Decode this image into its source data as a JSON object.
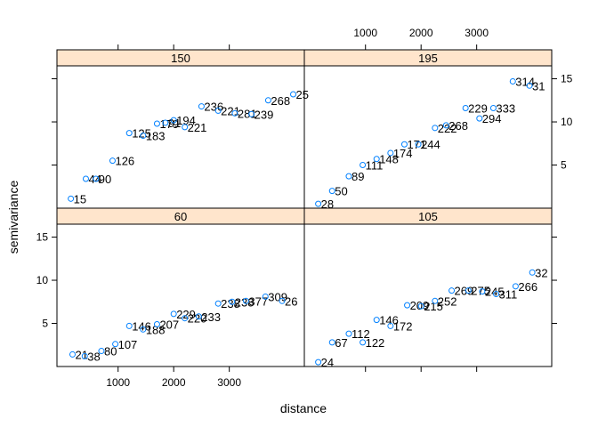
{
  "chart_data": {
    "type": "scatter",
    "layout": "trellis 2x2, panels labelled by strip",
    "xlabel": "distance",
    "ylabel": "semivariance",
    "xlim": [
      -100,
      4350
    ],
    "ylim": [
      0,
      16.5
    ],
    "x_ticks": [
      1000,
      2000,
      3000
    ],
    "y_ticks": [
      5,
      10,
      15
    ],
    "panels": [
      {
        "strip": "150",
        "points": [
          {
            "x": 150,
            "y": 1.1,
            "label": "15"
          },
          {
            "x": 420,
            "y": 3.4,
            "label": "44"
          },
          {
            "x": 600,
            "y": 3.4,
            "label": "90"
          },
          {
            "x": 900,
            "y": 5.5,
            "label": "126"
          },
          {
            "x": 1200,
            "y": 8.7,
            "label": "125"
          },
          {
            "x": 1450,
            "y": 8.4,
            "label": "183"
          },
          {
            "x": 1700,
            "y": 9.8,
            "label": "179"
          },
          {
            "x": 1850,
            "y": 9.9,
            "label": "91"
          },
          {
            "x": 2000,
            "y": 10.2,
            "label": "194"
          },
          {
            "x": 2200,
            "y": 9.4,
            "label": "221"
          },
          {
            "x": 2500,
            "y": 11.8,
            "label": "236"
          },
          {
            "x": 2800,
            "y": 11.3,
            "label": "221"
          },
          {
            "x": 3100,
            "y": 11.0,
            "label": "281"
          },
          {
            "x": 3400,
            "y": 10.9,
            "label": "239"
          },
          {
            "x": 3700,
            "y": 12.5,
            "label": "268"
          },
          {
            "x": 4150,
            "y": 13.2,
            "label": "25"
          }
        ]
      },
      {
        "strip": "195",
        "points": [
          {
            "x": 150,
            "y": 0.5,
            "label": "28"
          },
          {
            "x": 400,
            "y": 2.0,
            "label": "50"
          },
          {
            "x": 700,
            "y": 3.7,
            "label": "89"
          },
          {
            "x": 950,
            "y": 5.0,
            "label": "111"
          },
          {
            "x": 1200,
            "y": 5.7,
            "label": "148"
          },
          {
            "x": 1450,
            "y": 6.4,
            "label": "174"
          },
          {
            "x": 1700,
            "y": 7.4,
            "label": "171"
          },
          {
            "x": 1950,
            "y": 7.4,
            "label": "244"
          },
          {
            "x": 2250,
            "y": 9.3,
            "label": "222"
          },
          {
            "x": 2450,
            "y": 9.6,
            "label": "268"
          },
          {
            "x": 2800,
            "y": 11.6,
            "label": "229"
          },
          {
            "x": 3050,
            "y": 10.4,
            "label": "294"
          },
          {
            "x": 3300,
            "y": 11.6,
            "label": "333"
          },
          {
            "x": 3650,
            "y": 14.7,
            "label": "314"
          },
          {
            "x": 3950,
            "y": 14.2,
            "label": "31"
          }
        ]
      },
      {
        "strip": "60",
        "points": [
          {
            "x": 180,
            "y": 1.4,
            "label": "21"
          },
          {
            "x": 400,
            "y": 1.2,
            "label": "38"
          },
          {
            "x": 700,
            "y": 1.8,
            "label": "80"
          },
          {
            "x": 950,
            "y": 2.6,
            "label": "107"
          },
          {
            "x": 1200,
            "y": 4.7,
            "label": "146"
          },
          {
            "x": 1450,
            "y": 4.3,
            "label": "188"
          },
          {
            "x": 1700,
            "y": 4.9,
            "label": "207"
          },
          {
            "x": 2000,
            "y": 6.1,
            "label": "229"
          },
          {
            "x": 2200,
            "y": 5.6,
            "label": "220"
          },
          {
            "x": 2450,
            "y": 5.8,
            "label": "233"
          },
          {
            "x": 2800,
            "y": 7.3,
            "label": "238"
          },
          {
            "x": 3050,
            "y": 7.5,
            "label": "238"
          },
          {
            "x": 3300,
            "y": 7.6,
            "label": "377"
          },
          {
            "x": 3650,
            "y": 8.1,
            "label": "309"
          },
          {
            "x": 3950,
            "y": 7.6,
            "label": "26"
          }
        ]
      },
      {
        "strip": "105",
        "points": [
          {
            "x": 150,
            "y": 0.5,
            "label": "24"
          },
          {
            "x": 400,
            "y": 2.8,
            "label": "67"
          },
          {
            "x": 700,
            "y": 3.8,
            "label": "112"
          },
          {
            "x": 950,
            "y": 2.8,
            "label": "122"
          },
          {
            "x": 1200,
            "y": 5.4,
            "label": "146"
          },
          {
            "x": 1450,
            "y": 4.7,
            "label": "172"
          },
          {
            "x": 1750,
            "y": 7.1,
            "label": "209"
          },
          {
            "x": 2000,
            "y": 7.0,
            "label": "215"
          },
          {
            "x": 2250,
            "y": 7.6,
            "label": "252"
          },
          {
            "x": 2550,
            "y": 8.8,
            "label": "269"
          },
          {
            "x": 2850,
            "y": 8.8,
            "label": "275"
          },
          {
            "x": 3100,
            "y": 8.7,
            "label": "245"
          },
          {
            "x": 3350,
            "y": 8.4,
            "label": "311"
          },
          {
            "x": 3700,
            "y": 9.3,
            "label": "266"
          },
          {
            "x": 4000,
            "y": 10.9,
            "label": "32"
          }
        ]
      }
    ]
  },
  "colors": {
    "point": "#0080ff",
    "strip": "#ffe5cc"
  }
}
